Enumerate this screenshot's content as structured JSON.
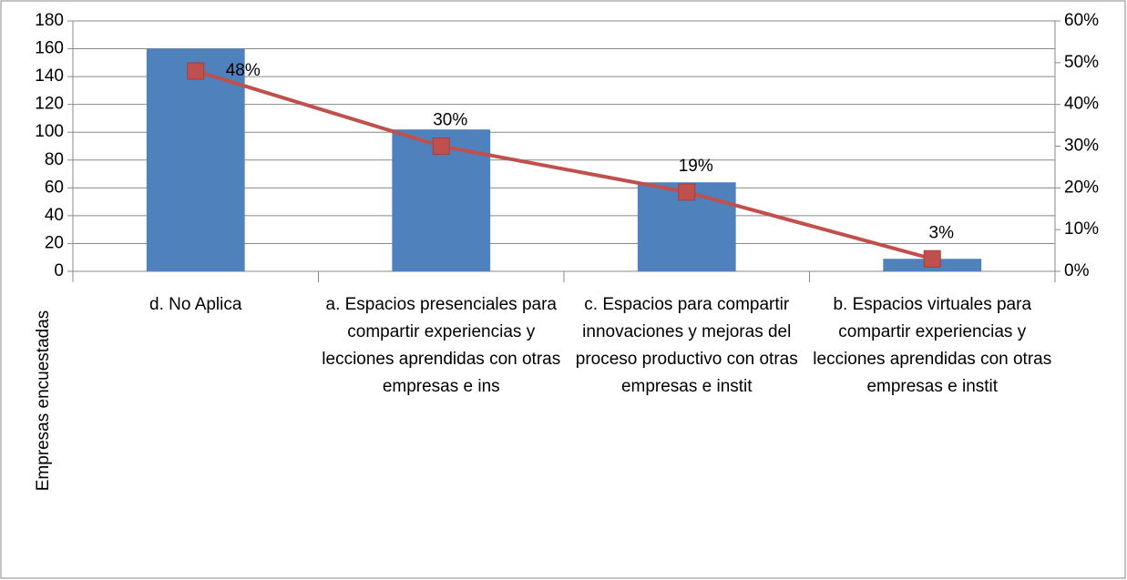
{
  "chart_data": {
    "type": "bar",
    "y_label": "Empresas encuestadas",
    "categories": [
      "d. No Aplica",
      "a. Espacios presenciales para compartir experiencias y lecciones aprendidas con otras empresas e ins",
      "c. Espacios para compartir innovaciones y mejoras del proceso productivo con otras empresas e instit",
      "b. Espacios virtuales para compartir experiencias y lecciones aprendidas con otras empresas e instit"
    ],
    "series": [
      {
        "type": "bar",
        "color": "#4f81bd",
        "values": [
          160,
          102,
          64,
          9
        ]
      },
      {
        "type": "line",
        "axis": "y2",
        "color": "#c0504d",
        "values": [
          48,
          30,
          19,
          3
        ],
        "value_labels": [
          "48%",
          "30%",
          "19%",
          "3%"
        ]
      }
    ],
    "ylim": [
      0,
      180
    ],
    "yticks": [
      0,
      20,
      40,
      60,
      80,
      100,
      120,
      140,
      160,
      180
    ],
    "y2lim": [
      0,
      60
    ],
    "y2ticks": [
      {
        "value": 0,
        "label": "0%"
      },
      {
        "value": 10,
        "label": "10%"
      },
      {
        "value": 20,
        "label": "20%"
      },
      {
        "value": 30,
        "label": "30%"
      },
      {
        "value": 40,
        "label": "40%"
      },
      {
        "value": 50,
        "label": "50%"
      },
      {
        "value": 60,
        "label": "60%"
      }
    ],
    "grid": true
  }
}
